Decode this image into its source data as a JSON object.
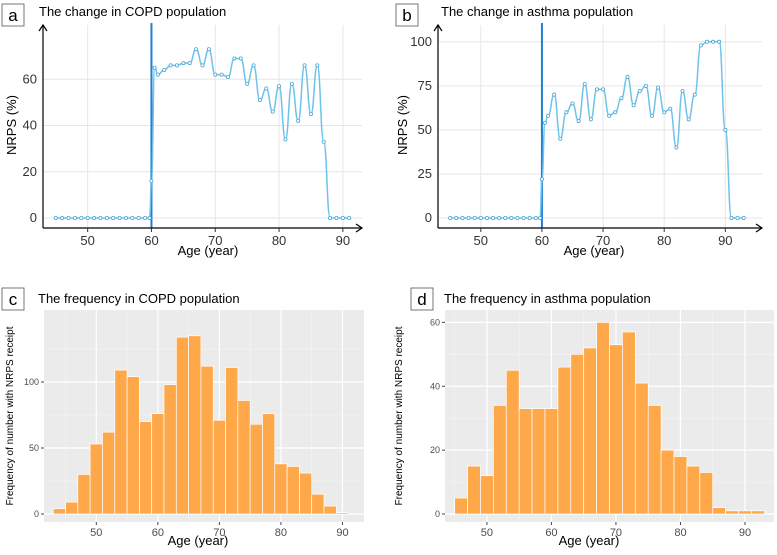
{
  "chart_data": [
    {
      "panel_letter": "a",
      "type": "line",
      "title": "The change in COPD population",
      "xlabel": "Age (year)",
      "ylabel": "NRPS (%)",
      "xlim": [
        43,
        93
      ],
      "ylim": [
        0,
        80
      ],
      "xticks": [
        50,
        60,
        70,
        80,
        90
      ],
      "yticks": [
        0,
        20,
        40,
        60
      ],
      "grid": true,
      "vline_x": 60,
      "series": [
        {
          "x": [
            45,
            46,
            47,
            48,
            49,
            50,
            51,
            52,
            53,
            54,
            55,
            56,
            57,
            58,
            59,
            59.7,
            60,
            60.5,
            61,
            62,
            63,
            64,
            65,
            66,
            67,
            68,
            69,
            70,
            71,
            72,
            73,
            74,
            75,
            76,
            77,
            78,
            79,
            80,
            81,
            82,
            83,
            84,
            85,
            86,
            87,
            88,
            89,
            90,
            91
          ],
          "y": [
            0,
            0,
            0,
            0,
            0,
            0,
            0,
            0,
            0,
            0,
            0,
            0,
            0,
            0,
            0,
            0,
            16,
            65,
            62,
            64,
            66,
            66,
            67,
            67,
            73,
            66,
            73,
            62,
            62,
            61,
            69,
            69,
            58,
            66,
            51,
            56,
            46,
            57,
            34,
            58,
            42,
            66,
            45,
            66,
            33,
            0,
            0,
            0,
            0
          ]
        }
      ]
    },
    {
      "panel_letter": "b",
      "type": "line",
      "title": "The change in asthma population",
      "xlabel": "Age (year)",
      "ylabel": "NRPS (%)",
      "xlim": [
        43,
        96
      ],
      "ylim": [
        0,
        105
      ],
      "xticks": [
        50,
        60,
        70,
        80,
        90
      ],
      "yticks": [
        0,
        25,
        50,
        75,
        100
      ],
      "grid": true,
      "vline_x": 60,
      "series": [
        {
          "x": [
            45,
            46,
            47,
            48,
            49,
            50,
            51,
            52,
            53,
            54,
            55,
            56,
            57,
            58,
            59,
            59.7,
            60,
            60.5,
            61,
            62,
            63,
            64,
            65,
            66,
            67,
            68,
            69,
            70,
            71,
            72,
            73,
            74,
            75,
            76,
            77,
            78,
            79,
            80,
            81,
            82,
            83,
            84,
            85,
            86,
            87,
            88,
            89,
            90,
            91,
            92,
            93
          ],
          "y": [
            0,
            0,
            0,
            0,
            0,
            0,
            0,
            0,
            0,
            0,
            0,
            0,
            0,
            0,
            0,
            0,
            22,
            54,
            58,
            70,
            45,
            60,
            65,
            55,
            76,
            56,
            73,
            73,
            58,
            60,
            68,
            80,
            64,
            72,
            75,
            58,
            74,
            60,
            62,
            40,
            72,
            56,
            70,
            98,
            100,
            100,
            100,
            50,
            0,
            0,
            0
          ]
        }
      ]
    },
    {
      "panel_letter": "c",
      "type": "bar",
      "title": "The frequency in COPD population",
      "xlabel": "Age (year)",
      "ylabel": "Frequency of number with NRPS receipt",
      "xlim": [
        41.5,
        93.5
      ],
      "ylim": [
        0,
        150
      ],
      "xticks": [
        50,
        60,
        70,
        80,
        90
      ],
      "yticks": [
        0,
        50,
        100
      ],
      "bin_width": 2,
      "bin_centers": [
        44,
        46,
        48,
        50,
        52,
        54,
        56,
        58,
        60,
        62,
        64,
        66,
        68,
        70,
        72,
        74,
        76,
        78,
        80,
        82,
        84,
        86,
        88,
        90
      ],
      "values": [
        4,
        9,
        30,
        53,
        62,
        109,
        104,
        70,
        76,
        98,
        134,
        135,
        112,
        71,
        111,
        86,
        68,
        76,
        38,
        36,
        31,
        15,
        6,
        1
      ]
    },
    {
      "panel_letter": "d",
      "type": "bar",
      "title": "The frequency in asthma population",
      "xlabel": "Age (year)",
      "ylabel": "Frequency of number with NRPS receipt",
      "xlim": [
        43.5,
        94.5
      ],
      "ylim": [
        0,
        62
      ],
      "xticks": [
        50,
        60,
        70,
        80,
        90
      ],
      "yticks": [
        0,
        20,
        40,
        60
      ],
      "bin_width": 2,
      "bin_centers": [
        46,
        48,
        50,
        52,
        54,
        56,
        58,
        60,
        62,
        64,
        66,
        68,
        70,
        72,
        74,
        76,
        78,
        80,
        82,
        84,
        86,
        88,
        90,
        92
      ],
      "values": [
        5,
        15,
        12,
        34,
        45,
        33,
        33,
        33,
        46,
        50,
        52,
        60,
        53,
        57,
        41,
        34,
        20,
        18,
        15,
        13,
        2,
        1,
        1,
        1
      ]
    }
  ]
}
